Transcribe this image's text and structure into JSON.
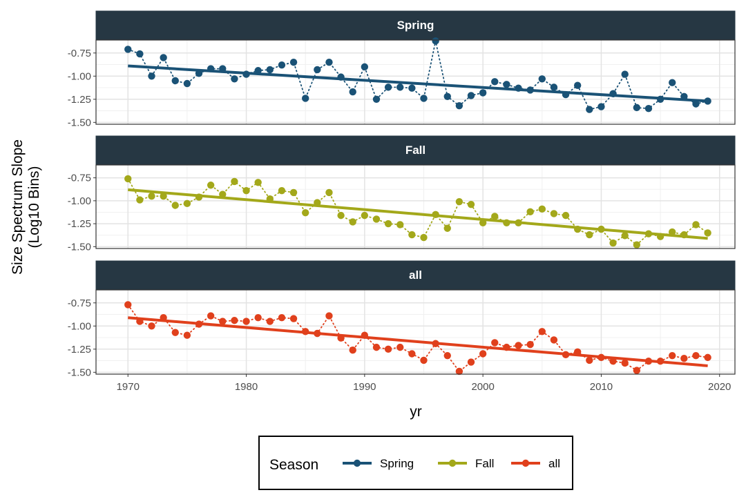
{
  "chart_data": {
    "type": "line",
    "title": "",
    "xlabel": "yr",
    "ylabel_line1": "Size Spectrum Slope",
    "ylabel_line2": "(Log10 Bins)",
    "xlim": [
      1967.3,
      2021.3
    ],
    "ylim": [
      -1.52,
      -0.61
    ],
    "x_ticks": [
      1970,
      1980,
      1990,
      2000,
      2010,
      2020
    ],
    "y_ticks": [
      -0.75,
      -1.0,
      -1.25,
      -1.5
    ],
    "y_tick_labels": [
      "-0.75",
      "-1.00",
      "-1.25",
      "-1.50"
    ],
    "grid": true,
    "legend": {
      "title": "Season",
      "position": "bottom"
    },
    "x": [
      1970,
      1971,
      1972,
      1973,
      1974,
      1975,
      1976,
      1977,
      1978,
      1979,
      1980,
      1981,
      1982,
      1983,
      1984,
      1985,
      1986,
      1987,
      1988,
      1989,
      1990,
      1991,
      1992,
      1993,
      1994,
      1995,
      1996,
      1997,
      1998,
      1999,
      2000,
      2001,
      2002,
      2003,
      2004,
      2005,
      2006,
      2007,
      2008,
      2009,
      2010,
      2011,
      2012,
      2013,
      2014,
      2015,
      2016,
      2017,
      2018,
      2019
    ],
    "series": [
      {
        "name": "Spring",
        "color": "#1a5276",
        "values": [
          -0.71,
          -0.76,
          -1.0,
          -0.8,
          -1.05,
          -1.08,
          -0.97,
          -0.92,
          -0.92,
          -1.03,
          -0.98,
          -0.94,
          -0.93,
          -0.88,
          -0.85,
          -1.24,
          -0.93,
          -0.85,
          -1.01,
          -1.17,
          -0.9,
          -1.25,
          -1.12,
          -1.12,
          -1.13,
          -1.24,
          -0.62,
          -1.22,
          -1.32,
          -1.21,
          -1.18,
          -1.06,
          -1.09,
          -1.13,
          -1.15,
          -1.03,
          -1.12,
          -1.2,
          -1.1,
          -1.36,
          -1.33,
          -1.19,
          -0.98,
          -1.34,
          -1.35,
          -1.25,
          -1.07,
          -1.22,
          -1.3,
          -1.27
        ],
        "trend": [
          -0.89,
          -1.27
        ]
      },
      {
        "name": "Fall",
        "color": "#a3a81a",
        "values": [
          -0.76,
          -0.99,
          -0.95,
          -0.95,
          -1.05,
          -1.03,
          -0.96,
          -0.83,
          -0.93,
          -0.79,
          -0.89,
          -0.8,
          -0.98,
          -0.89,
          -0.91,
          -1.13,
          -1.02,
          -0.91,
          -1.16,
          -1.23,
          -1.16,
          -1.2,
          -1.25,
          -1.26,
          -1.37,
          -1.4,
          -1.15,
          -1.3,
          -1.01,
          -1.04,
          -1.24,
          -1.17,
          -1.24,
          -1.24,
          -1.12,
          -1.09,
          -1.14,
          -1.16,
          -1.31,
          -1.37,
          -1.31,
          -1.46,
          -1.38,
          -1.48,
          -1.36,
          -1.39,
          -1.34,
          -1.37,
          -1.26,
          -1.35
        ],
        "trend": [
          -0.88,
          -1.41
        ]
      },
      {
        "name": "all",
        "color": "#e0401c",
        "values": [
          -0.77,
          -0.95,
          -1.0,
          -0.91,
          -1.07,
          -1.1,
          -0.98,
          -0.89,
          -0.95,
          -0.94,
          -0.95,
          -0.91,
          -0.95,
          -0.91,
          -0.92,
          -1.06,
          -1.08,
          -0.89,
          -1.13,
          -1.26,
          -1.1,
          -1.23,
          -1.25,
          -1.23,
          -1.3,
          -1.37,
          -1.19,
          -1.32,
          -1.49,
          -1.39,
          -1.3,
          -1.18,
          -1.23,
          -1.21,
          -1.2,
          -1.06,
          -1.15,
          -1.31,
          -1.28,
          -1.37,
          -1.34,
          -1.38,
          -1.4,
          -1.48,
          -1.38,
          -1.38,
          -1.32,
          -1.35,
          -1.32,
          -1.34
        ],
        "trend": [
          -0.91,
          -1.43
        ]
      }
    ]
  }
}
